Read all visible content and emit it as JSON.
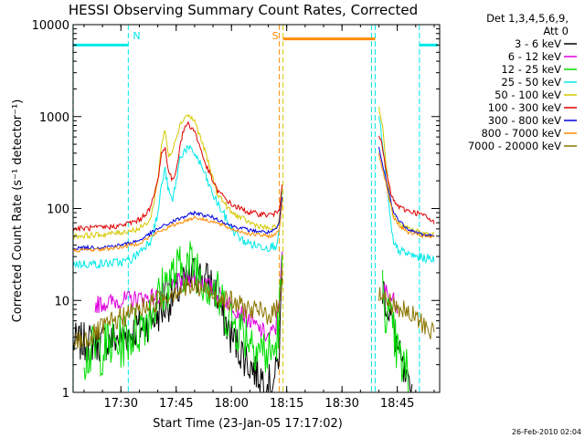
{
  "title": "HESSI Observing Summary Count Rates, Corrected",
  "footer": "26-Feb-2010 02:04",
  "legend": {
    "header": [
      "Det 1,3,4,5,6,9,",
      "Att 0"
    ],
    "items": [
      {
        "label": "3 - 6 keV",
        "color": "#000000"
      },
      {
        "label": "6 - 12 keV",
        "color": "#e000e0"
      },
      {
        "label": "12 - 25 keV",
        "color": "#00dd00"
      },
      {
        "label": "25 - 50 keV",
        "color": "#00e8e8"
      },
      {
        "label": "50 - 100 keV",
        "color": "#d6c800"
      },
      {
        "label": "100 - 300 keV",
        "color": "#e00000"
      },
      {
        "label": "300 - 800 keV",
        "color": "#0000e0"
      },
      {
        "label": "800 - 7000 keV",
        "color": "#ff8c00"
      },
      {
        "label": "7000 - 20000 keV",
        "color": "#8b7500"
      }
    ]
  },
  "chart_data": {
    "type": "line",
    "title": "HESSI Observing Summary Count Rates, Corrected",
    "xlabel": "Start Time (23-Jan-05 17:17:02)",
    "ylabel": "Corrected Count Rate (s⁻¹ detector⁻¹)",
    "yscale": "log",
    "ylim": [
      1,
      10000
    ],
    "xlim": [
      "17:17:02",
      "18:56:30"
    ],
    "x_ticks": [
      "17:30",
      "17:45",
      "18:00",
      "18:15",
      "18:30",
      "18:45"
    ],
    "y_ticks": [
      "1",
      "10",
      "100",
      "1000",
      "10000"
    ],
    "time_flags": [
      {
        "label": "N",
        "color": "#00e8e8",
        "segments": [
          [
            "17:17",
            "17:32"
          ],
          [
            "18:51",
            "18:56"
          ]
        ],
        "level": 6000
      },
      {
        "label": "S",
        "color": "#ff8c00",
        "segments": [
          [
            "18:14",
            "18:39"
          ]
        ],
        "level": 7000
      }
    ],
    "boundaries": [
      {
        "time": "17:17",
        "color": "#00e8e8"
      },
      {
        "time": "17:32",
        "color": "#00e8e8"
      },
      {
        "time": "18:13",
        "color": "#ff8c00"
      },
      {
        "time": "18:14",
        "color": "#d6c800"
      },
      {
        "time": "18:38",
        "color": "#00e8e8"
      },
      {
        "time": "18:39",
        "color": "#00e8e8"
      },
      {
        "time": "18:51",
        "color": "#00e8e8"
      }
    ],
    "series": [
      {
        "name": "3 - 6 keV",
        "color": "#000000",
        "noise": 0.22,
        "segments": [
          {
            "t": [
              "17:17",
              "17:25",
              "17:30",
              "17:35",
              "17:40",
              "17:45",
              "17:50",
              "17:55",
              "17:57",
              "18:00",
              "18:05",
              "18:08",
              "18:10",
              "18:12",
              "18:13",
              "18:13.8"
            ],
            "v": [
              3.5,
              3.5,
              4,
              5,
              7,
              12,
              20,
              15,
              8,
              4,
              2,
              1.5,
              1.2,
              1.5,
              3,
              20
            ]
          },
          {
            "t": [
              "18:41",
              "18:42",
              "18:44",
              "18:46",
              "18:48",
              "18:49"
            ],
            "v": [
              14,
              10,
              5,
              2,
              1,
              1
            ]
          }
        ]
      },
      {
        "name": "6 - 12 keV",
        "color": "#e000e0",
        "noise": 0.1,
        "segments": [
          {
            "t": [
              "17:23",
              "17:30",
              "17:35",
              "17:40",
              "17:43",
              "17:46",
              "17:50",
              "17:53",
              "17:56",
              "18:00",
              "18:05",
              "18:10",
              "18:12",
              "18:13",
              "18:13.8"
            ],
            "v": [
              9,
              10,
              10.5,
              11,
              14,
              16,
              18,
              15,
              12,
              9,
              6,
              4,
              5,
              12,
              30
            ]
          },
          {
            "t": [
              "18:41",
              "18:43",
              "18:45"
            ],
            "v": [
              14,
              11,
              9
            ]
          }
        ]
      },
      {
        "name": "12 - 25 keV",
        "color": "#00dd00",
        "noise": 0.3,
        "segments": [
          {
            "t": [
              "17:20",
              "17:25",
              "17:30",
              "17:35",
              "17:40",
              "17:43",
              "17:45",
              "17:48",
              "17:50",
              "17:53",
              "17:57",
              "18:00",
              "18:05",
              "18:08",
              "18:10",
              "18:12",
              "18:13",
              "18:13.8"
            ],
            "v": [
              2.5,
              3,
              3.5,
              5,
              10,
              17,
              20,
              24,
              25,
              17,
              10,
              6,
              4,
              3,
              2.5,
              3,
              7,
              25
            ]
          },
          {
            "t": [
              "18:41",
              "18:42",
              "18:44",
              "18:46",
              "18:48"
            ],
            "v": [
              12,
              8,
              4,
              2,
              1.5
            ]
          }
        ]
      },
      {
        "name": "25 - 50 keV",
        "color": "#00e8e8",
        "noise": 0.05,
        "segments": [
          {
            "t": [
              "17:17",
              "17:25",
              "17:30",
              "17:33",
              "17:38",
              "17:40",
              "17:41",
              "17:42",
              "17:43",
              "17:44",
              "17:45",
              "17:46",
              "17:47",
              "17:48",
              "17:50",
              "17:52",
              "17:55",
              "17:58",
              "18:00",
              "18:03",
              "18:06",
              "18:10",
              "18:12",
              "18:13",
              "18:13.8"
            ],
            "v": [
              25,
              25,
              26,
              28,
              45,
              85,
              180,
              260,
              150,
              120,
              200,
              350,
              420,
              450,
              400,
              280,
              140,
              85,
              60,
              45,
              40,
              38,
              40,
              55,
              160
            ]
          },
          {
            "t": [
              "18:40",
              "18:41",
              "18:42",
              "18:43",
              "18:44",
              "18:46",
              "18:48",
              "18:50",
              "18:52",
              "18:55"
            ],
            "v": [
              1000,
              500,
              200,
              80,
              40,
              34,
              32,
              30,
              29,
              28
            ]
          }
        ]
      },
      {
        "name": "50 - 100 keV",
        "color": "#d6c800",
        "noise": 0.03,
        "segments": [
          {
            "t": [
              "17:17",
              "17:25",
              "17:30",
              "17:35",
              "17:38",
              "17:40",
              "17:41",
              "17:42",
              "17:43",
              "17:44",
              "17:45",
              "17:46",
              "17:47",
              "17:48",
              "17:50",
              "17:53",
              "17:56",
              "18:00",
              "18:05",
              "18:10",
              "18:12",
              "18:13",
              "18:13.8"
            ],
            "v": [
              50,
              52,
              55,
              60,
              75,
              200,
              500,
              700,
              350,
              450,
              600,
              800,
              950,
              1050,
              900,
              400,
              150,
              90,
              70,
              60,
              62,
              75,
              180
            ]
          },
          {
            "t": [
              "18:40",
              "18:41",
              "18:42",
              "18:43",
              "18:44",
              "18:46",
              "18:48",
              "18:50",
              "18:52",
              "18:55"
            ],
            "v": [
              1250,
              800,
              300,
              130,
              80,
              65,
              60,
              57,
              54,
              52
            ]
          }
        ]
      },
      {
        "name": "100 - 300 keV",
        "color": "#e00000",
        "noise": 0.03,
        "segments": [
          {
            "t": [
              "17:17",
              "17:25",
              "17:30",
              "17:35",
              "17:38",
              "17:40",
              "17:41",
              "17:42",
              "17:43",
              "17:44",
              "17:45",
              "17:46",
              "17:47",
              "17:48",
              "17:50",
              "17:53",
              "17:56",
              "18:00",
              "18:05",
              "18:10",
              "18:12",
              "18:13",
              "18:13.8"
            ],
            "v": [
              60,
              62,
              65,
              75,
              100,
              200,
              400,
              450,
              250,
              200,
              260,
              480,
              700,
              850,
              700,
              300,
              160,
              110,
              90,
              85,
              88,
              100,
              200
            ]
          },
          {
            "t": [
              "18:40",
              "18:41",
              "18:42",
              "18:43",
              "18:44",
              "18:46",
              "18:48",
              "18:50",
              "18:52",
              "18:55"
            ],
            "v": [
              650,
              450,
              250,
              160,
              120,
              100,
              95,
              90,
              85,
              70
            ]
          }
        ]
      },
      {
        "name": "300 - 800 keV",
        "color": "#0000e0",
        "noise": 0.02,
        "segments": [
          {
            "t": [
              "17:17",
              "17:25",
              "17:30",
              "17:35",
              "17:40",
              "17:45",
              "17:50",
              "17:55",
              "18:00",
              "18:05",
              "18:10",
              "18:12",
              "18:13",
              "18:13.8"
            ],
            "v": [
              37,
              38,
              40,
              45,
              60,
              75,
              90,
              80,
              65,
              58,
              55,
              58,
              70,
              140
            ]
          },
          {
            "t": [
              "18:40",
              "18:42",
              "18:44",
              "18:46",
              "18:48",
              "18:50",
              "18:52",
              "18:55"
            ],
            "v": [
              450,
              200,
              90,
              70,
              60,
              55,
              52,
              50
            ]
          }
        ]
      },
      {
        "name": "800 - 7000 keV",
        "color": "#ff8c00",
        "noise": 0.02,
        "segments": [
          {
            "t": [
              "17:17",
              "17:25",
              "17:30",
              "17:35",
              "17:40",
              "17:45",
              "17:50",
              "17:55",
              "18:00",
              "18:05",
              "18:10",
              "18:12",
              "18:13",
              "18:13.8"
            ],
            "v": [
              35,
              36,
              38,
              42,
              55,
              68,
              80,
              72,
              60,
              53,
              50,
              52,
              60,
              120
            ]
          },
          {
            "t": [
              "18:40",
              "18:42",
              "18:44",
              "18:46",
              "18:48",
              "18:50",
              "18:52",
              "18:55"
            ],
            "v": [
              400,
              180,
              80,
              62,
              55,
              52,
              50,
              48
            ]
          }
        ]
      },
      {
        "name": "7000 - 20000 keV",
        "color": "#8b7500",
        "noise": 0.12,
        "segments": [
          {
            "t": [
              "17:17",
              "17:22",
              "17:25",
              "17:30",
              "17:35",
              "17:40",
              "17:45",
              "17:50",
              "17:55",
              "18:00",
              "18:05",
              "18:10",
              "18:12",
              "18:13",
              "18:13.8"
            ],
            "v": [
              3.5,
              4,
              5,
              6.5,
              8,
              10,
              13,
              14,
              12,
              9.5,
              8,
              7,
              7.5,
              10,
              25
            ]
          },
          {
            "t": [
              "18:40",
              "18:42",
              "18:44",
              "18:46",
              "18:48",
              "18:50",
              "18:52",
              "18:55"
            ],
            "v": [
              12,
              10,
              9,
              8,
              7,
              6.5,
              5.5,
              4.5
            ]
          }
        ]
      }
    ]
  }
}
